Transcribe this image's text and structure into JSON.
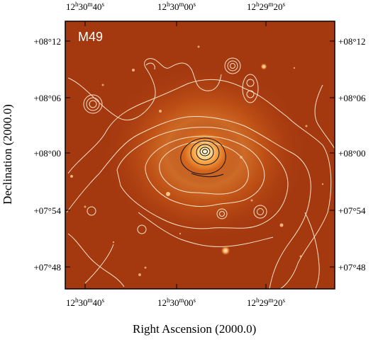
{
  "image": {
    "object_label": "M49",
    "x_axis_title": "Right Ascension (2000.0)",
    "y_axis_title": "Declination (2000.0)",
    "x_ticks": [
      {
        "h": "12",
        "m": "30",
        "s": "40"
      },
      {
        "h": "12",
        "m": "30",
        "s": "00"
      },
      {
        "h": "12",
        "m": "29",
        "s": "20"
      }
    ],
    "y_ticks": [
      "+08°12",
      "+08°06",
      "+08°00",
      "+07°54",
      "+07°48"
    ],
    "colors": {
      "sky_background": "#a4380f",
      "galaxy_core": "#fff6d8",
      "contour_outer": "#fbe2c8",
      "contour_inner": "#111111"
    }
  }
}
